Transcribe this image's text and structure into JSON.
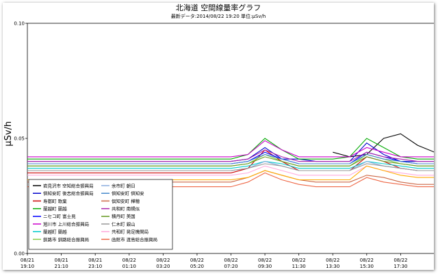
{
  "chart_data": {
    "type": "line",
    "title": "北海道 空間線量率グラフ",
    "subtitle": "最新データ:2014/08/22 19:20 単位:μSv/h",
    "ylabel": "μSv/h",
    "xlabel": "",
    "ylim": [
      0,
      0.1
    ],
    "y_ticks": [
      "0.00",
      "0.05",
      "0.10"
    ],
    "x_ticks": [
      {
        "date": "08/21",
        "time": "19:10"
      },
      {
        "date": "08/21",
        "time": "21:10"
      },
      {
        "date": "08/21",
        "time": "23:10"
      },
      {
        "date": "08/22",
        "time": "01:10"
      },
      {
        "date": "08/22",
        "time": "03:20"
      },
      {
        "date": "08/22",
        "time": "05:20"
      },
      {
        "date": "08/22",
        "time": "07:20"
      },
      {
        "date": "08/22",
        "time": "09:30"
      },
      {
        "date": "08/22",
        "time": "11:30"
      },
      {
        "date": "08/22",
        "time": "13:30"
      },
      {
        "date": "08/22",
        "time": "15:30"
      },
      {
        "date": "08/22",
        "time": "17:30"
      }
    ],
    "grid": false,
    "legend_position": "bottom-left",
    "x": [
      "08/21 19:10",
      "08/21 20:10",
      "08/21 21:10",
      "08/21 22:10",
      "08/21 23:10",
      "08/22 00:10",
      "08/22 01:10",
      "08/22 02:10",
      "08/22 03:20",
      "08/22 04:20",
      "08/22 05:20",
      "08/22 06:20",
      "08/22 07:20",
      "08/22 08:30",
      "08/22 09:30",
      "08/22 10:30",
      "08/22 11:30",
      "08/22 12:30",
      "08/22 13:30",
      "08/22 14:30",
      "08/22 15:30",
      "08/22 16:30",
      "08/22 17:30",
      "08/22 18:30",
      "08/22 19:20"
    ],
    "series": [
      {
        "name": "岩見沢市 空知総合振興局",
        "color": "#000000",
        "values": [
          null,
          null,
          null,
          null,
          null,
          null,
          null,
          null,
          null,
          null,
          null,
          null,
          null,
          null,
          null,
          null,
          null,
          null,
          0.044,
          0.042,
          0.043,
          0.05,
          0.052,
          0.047,
          0.044
        ]
      },
      {
        "name": "倶知安町 後志総合振興局",
        "color": "#0000cc",
        "values": [
          0.04,
          0.04,
          0.04,
          0.04,
          0.04,
          0.04,
          0.04,
          0.04,
          0.04,
          0.04,
          0.04,
          0.04,
          0.04,
          0.041,
          0.046,
          0.041,
          0.041,
          0.04,
          0.04,
          0.04,
          0.048,
          0.043,
          0.04,
          0.04,
          0.04
        ]
      },
      {
        "name": "寿都町 歌棄",
        "color": "#cc0000",
        "values": [
          0.035,
          0.035,
          0.035,
          0.035,
          0.035,
          0.035,
          0.035,
          0.035,
          0.035,
          0.035,
          0.035,
          0.035,
          0.035,
          0.037,
          0.045,
          0.04,
          0.036,
          0.036,
          0.036,
          0.036,
          0.042,
          0.04,
          0.037,
          0.036,
          0.036
        ]
      },
      {
        "name": "蘭越町 蘭越",
        "color": "#00aa00",
        "values": [
          0.041,
          0.041,
          0.041,
          0.041,
          0.041,
          0.041,
          0.041,
          0.041,
          0.041,
          0.041,
          0.041,
          0.041,
          0.041,
          0.043,
          0.05,
          0.045,
          0.041,
          0.041,
          0.041,
          0.042,
          0.05,
          0.046,
          0.042,
          0.041,
          0.041
        ]
      },
      {
        "name": "ニセコ町 富士見",
        "color": "#0000ff",
        "values": [
          0.039,
          0.039,
          0.039,
          0.039,
          0.039,
          0.039,
          0.039,
          0.039,
          0.039,
          0.039,
          0.039,
          0.039,
          0.039,
          0.04,
          0.044,
          0.041,
          0.039,
          0.039,
          0.039,
          0.039,
          0.044,
          0.042,
          0.04,
          0.039,
          0.039
        ]
      },
      {
        "name": "旭川市 上川総合振興局",
        "color": "#cc00cc",
        "values": [
          0.042,
          0.042,
          0.042,
          0.042,
          0.042,
          0.042,
          0.042,
          0.042,
          0.042,
          0.042,
          0.042,
          0.042,
          0.042,
          0.043,
          0.049,
          0.045,
          0.042,
          0.042,
          0.042,
          0.042,
          0.046,
          0.044,
          0.042,
          0.042,
          0.042
        ]
      },
      {
        "name": "蘭越町 蘭越",
        "color": "#00cccc",
        "values": [
          0.037,
          0.037,
          0.037,
          0.037,
          0.037,
          0.037,
          0.037,
          0.037,
          0.037,
          0.037,
          0.037,
          0.037,
          0.037,
          0.038,
          0.04,
          0.039,
          0.037,
          0.037,
          0.037,
          0.037,
          0.04,
          0.039,
          0.038,
          0.037,
          0.037
        ]
      },
      {
        "name": "釧路市 釧路総合振興局",
        "color": "#88cc44",
        "values": [
          0.038,
          0.038,
          0.038,
          0.038,
          0.038,
          0.038,
          0.038,
          0.038,
          0.038,
          0.038,
          0.038,
          0.038,
          0.038,
          0.039,
          0.043,
          0.04,
          0.038,
          0.038,
          0.038,
          0.038,
          0.043,
          0.041,
          0.039,
          0.038,
          0.038
        ]
      },
      {
        "name": "余市町 朝日",
        "color": "#88aadd",
        "values": [
          0.036,
          0.036,
          0.036,
          0.036,
          0.036,
          0.036,
          0.036,
          0.036,
          0.036,
          0.036,
          0.036,
          0.036,
          0.036,
          0.037,
          0.04,
          0.038,
          0.036,
          0.036,
          0.036,
          0.036,
          0.04,
          0.038,
          0.037,
          0.036,
          0.036
        ]
      },
      {
        "name": "倶知安町 倶知安",
        "color": "#4488cc",
        "values": [
          0.039,
          0.039,
          0.039,
          0.039,
          0.039,
          0.039,
          0.039,
          0.039,
          0.039,
          0.039,
          0.039,
          0.039,
          0.039,
          0.04,
          0.043,
          0.041,
          0.039,
          0.039,
          0.039,
          0.039,
          0.043,
          0.041,
          0.04,
          0.039,
          0.039
        ]
      },
      {
        "name": "倶知安町 樺穂",
        "color": "#cc6644",
        "values": [
          0.031,
          0.031,
          0.031,
          0.031,
          0.031,
          0.031,
          0.031,
          0.031,
          0.031,
          0.031,
          0.031,
          0.031,
          0.031,
          0.033,
          0.036,
          0.034,
          0.032,
          0.031,
          0.031,
          0.031,
          0.034,
          0.033,
          0.031,
          0.03,
          0.03
        ]
      },
      {
        "name": "共和町 南幌似",
        "color": "#aa22aa",
        "values": [
          0.04,
          0.04,
          0.04,
          0.04,
          0.04,
          0.04,
          0.04,
          0.04,
          0.04,
          0.04,
          0.04,
          0.04,
          0.04,
          0.041,
          0.045,
          0.042,
          0.04,
          0.04,
          0.04,
          0.04,
          0.044,
          0.042,
          0.041,
          0.04,
          0.04
        ]
      },
      {
        "name": "積丹町 美国",
        "color": "#669922",
        "values": [
          0.038,
          0.038,
          0.038,
          0.038,
          0.038,
          0.038,
          0.038,
          0.038,
          0.038,
          0.038,
          0.038,
          0.038,
          0.038,
          0.039,
          0.042,
          0.04,
          0.038,
          0.038,
          0.038,
          0.038,
          0.042,
          0.04,
          0.039,
          0.038,
          0.038
        ]
      },
      {
        "name": "仁木町 銀山",
        "color": "#999999",
        "values": [
          0.036,
          0.036,
          0.036,
          0.036,
          0.036,
          0.036,
          0.036,
          0.036,
          0.036,
          0.036,
          0.036,
          0.036,
          0.036,
          0.037,
          0.039,
          0.038,
          0.036,
          0.036,
          0.036,
          0.036,
          0.039,
          0.038,
          0.037,
          0.036,
          0.036
        ]
      },
      {
        "name": "共和町 発足機関局",
        "color": "#ffaadd",
        "values": [
          0.034,
          0.034,
          0.034,
          0.034,
          0.034,
          0.034,
          0.034,
          0.034,
          0.034,
          0.034,
          0.034,
          0.034,
          0.034,
          0.035,
          0.038,
          0.036,
          0.034,
          0.034,
          0.034,
          0.034,
          0.038,
          0.036,
          0.035,
          0.034,
          0.034
        ]
      },
      {
        "name": "函館市 渡島総合振興局",
        "color": "#ee6644",
        "values": [
          0.029,
          0.029,
          0.029,
          0.029,
          0.029,
          0.029,
          0.029,
          0.029,
          0.029,
          0.029,
          0.029,
          0.029,
          0.029,
          0.031,
          0.035,
          0.032,
          0.03,
          0.029,
          0.029,
          0.029,
          0.033,
          0.031,
          0.03,
          0.029,
          0.029
        ]
      },
      {
        "name": "",
        "color": "#ffaa00",
        "values": [
          0.032,
          0.032,
          0.032,
          0.032,
          0.032,
          0.032,
          0.032,
          0.032,
          0.032,
          0.032,
          0.032,
          0.032,
          0.032,
          0.033,
          0.036,
          0.034,
          0.032,
          0.032,
          0.032,
          0.032,
          0.038,
          0.036,
          0.034,
          0.033,
          0.033
        ]
      }
    ]
  }
}
